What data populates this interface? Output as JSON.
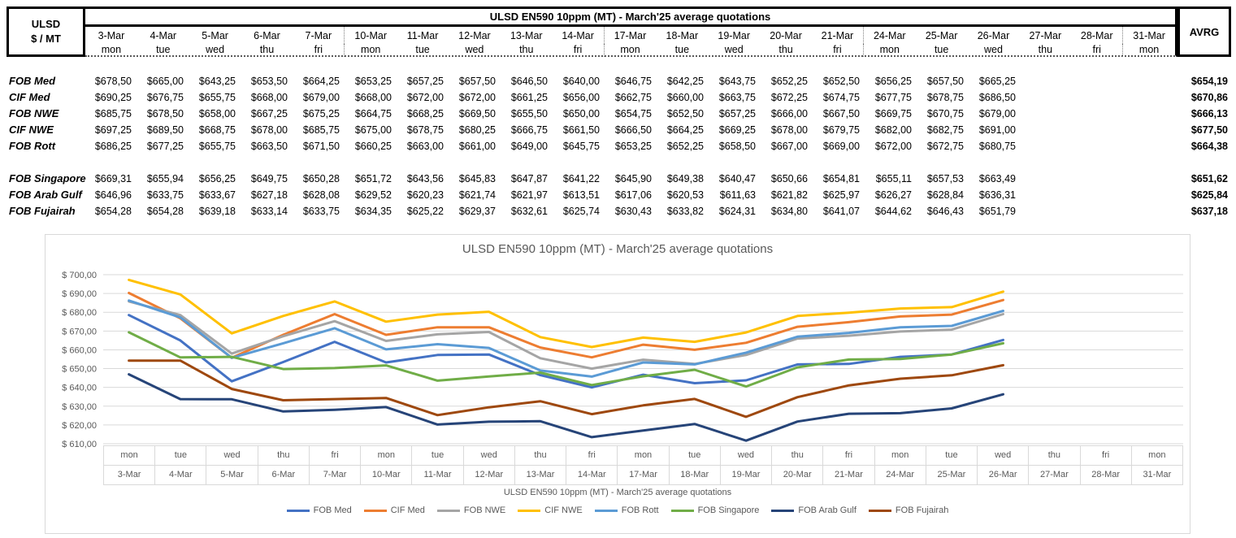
{
  "table": {
    "corner": {
      "line1": "ULSD",
      "line2": "$ / MT"
    },
    "title": "ULSD EN590 10ppm (MT) - March'25 average quotations",
    "avrg_header": "AVRG",
    "currency_prefix": "$",
    "columns": [
      {
        "date": "3-Mar",
        "day": "mon"
      },
      {
        "date": "4-Mar",
        "day": "tue"
      },
      {
        "date": "5-Mar",
        "day": "wed"
      },
      {
        "date": "6-Mar",
        "day": "thu"
      },
      {
        "date": "7-Mar",
        "day": "fri"
      },
      {
        "date": "10-Mar",
        "day": "mon"
      },
      {
        "date": "11-Mar",
        "day": "tue"
      },
      {
        "date": "12-Mar",
        "day": "wed"
      },
      {
        "date": "13-Mar",
        "day": "thu"
      },
      {
        "date": "14-Mar",
        "day": "fri"
      },
      {
        "date": "17-Mar",
        "day": "mon"
      },
      {
        "date": "18-Mar",
        "day": "tue"
      },
      {
        "date": "19-Mar",
        "day": "wed"
      },
      {
        "date": "20-Mar",
        "day": "thu"
      },
      {
        "date": "21-Mar",
        "day": "fri"
      },
      {
        "date": "24-Mar",
        "day": "mon"
      },
      {
        "date": "25-Mar",
        "day": "tue"
      },
      {
        "date": "26-Mar",
        "day": "wed"
      },
      {
        "date": "27-Mar",
        "day": "thu"
      },
      {
        "date": "28-Mar",
        "day": "fri"
      },
      {
        "date": "31-Mar",
        "day": "mon"
      }
    ],
    "week_break_after_indices": [
      4,
      9,
      14,
      19
    ],
    "row_groups": [
      [
        {
          "label": "FOB Med",
          "avrg": 654.19,
          "values": [
            678.5,
            665.0,
            643.25,
            653.5,
            664.25,
            653.25,
            657.25,
            657.5,
            646.5,
            640.0,
            646.75,
            642.25,
            643.75,
            652.25,
            652.5,
            656.25,
            657.5,
            665.25
          ]
        },
        {
          "label": "CIF Med",
          "avrg": 670.86,
          "values": [
            690.25,
            676.75,
            655.75,
            668.0,
            679.0,
            668.0,
            672.0,
            672.0,
            661.25,
            656.0,
            662.75,
            660.0,
            663.75,
            672.25,
            674.75,
            677.75,
            678.75,
            686.5
          ]
        },
        {
          "label": "FOB NWE",
          "avrg": 666.13,
          "values": [
            685.75,
            678.5,
            658.0,
            667.25,
            675.25,
            664.75,
            668.25,
            669.5,
            655.5,
            650.0,
            654.75,
            652.5,
            657.25,
            666.0,
            667.5,
            669.75,
            670.75,
            679.0
          ]
        },
        {
          "label": "CIF NWE",
          "avrg": 677.5,
          "values": [
            697.25,
            689.5,
            668.75,
            678.0,
            685.75,
            675.0,
            678.75,
            680.25,
            666.75,
            661.5,
            666.5,
            664.25,
            669.25,
            678.0,
            679.75,
            682.0,
            682.75,
            691.0
          ]
        },
        {
          "label": "FOB Rott",
          "avrg": 664.38,
          "values": [
            686.25,
            677.25,
            655.75,
            663.5,
            671.5,
            660.25,
            663.0,
            661.0,
            649.0,
            645.75,
            653.25,
            652.25,
            658.5,
            667.0,
            669.0,
            672.0,
            672.75,
            680.75
          ]
        }
      ],
      [
        {
          "label": "FOB Singapore",
          "avrg": 651.62,
          "values": [
            669.31,
            655.94,
            656.25,
            649.75,
            650.28,
            651.72,
            643.56,
            645.83,
            647.87,
            641.22,
            645.9,
            649.38,
            640.47,
            650.66,
            654.81,
            655.11,
            657.53,
            663.49
          ]
        },
        {
          "label": "FOB Arab Gulf",
          "avrg": 625.84,
          "values": [
            646.96,
            633.75,
            633.67,
            627.18,
            628.08,
            629.52,
            620.23,
            621.74,
            621.97,
            613.51,
            617.06,
            620.53,
            611.63,
            621.82,
            625.97,
            626.27,
            628.84,
            636.31
          ]
        },
        {
          "label": "FOB Fujairah",
          "avrg": 637.18,
          "values": [
            654.28,
            654.28,
            639.18,
            633.14,
            633.75,
            634.35,
            625.22,
            629.37,
            632.61,
            625.74,
            630.43,
            633.82,
            624.31,
            634.8,
            641.07,
            644.62,
            646.43,
            651.79
          ]
        }
      ]
    ]
  },
  "chart_data": {
    "type": "line",
    "title": "ULSD EN590 10ppm (MT) - March'25 average quotations",
    "x_axis_title": "ULSD EN590 10ppm (MT) - March'25 average quotations",
    "y_tick_prefix": "$ ",
    "ylim": [
      610,
      700
    ],
    "ytick_step": 10,
    "grid": true,
    "legend_position": "bottom",
    "categories": [
      {
        "date": "3-Mar",
        "day": "mon"
      },
      {
        "date": "4-Mar",
        "day": "tue"
      },
      {
        "date": "5-Mar",
        "day": "wed"
      },
      {
        "date": "6-Mar",
        "day": "thu"
      },
      {
        "date": "7-Mar",
        "day": "fri"
      },
      {
        "date": "10-Mar",
        "day": "mon"
      },
      {
        "date": "11-Mar",
        "day": "tue"
      },
      {
        "date": "12-Mar",
        "day": "wed"
      },
      {
        "date": "13-Mar",
        "day": "thu"
      },
      {
        "date": "14-Mar",
        "day": "fri"
      },
      {
        "date": "17-Mar",
        "day": "mon"
      },
      {
        "date": "18-Mar",
        "day": "tue"
      },
      {
        "date": "19-Mar",
        "day": "wed"
      },
      {
        "date": "20-Mar",
        "day": "thu"
      },
      {
        "date": "21-Mar",
        "day": "fri"
      },
      {
        "date": "24-Mar",
        "day": "mon"
      },
      {
        "date": "25-Mar",
        "day": "tue"
      },
      {
        "date": "26-Mar",
        "day": "wed"
      },
      {
        "date": "27-Mar",
        "day": "thu"
      },
      {
        "date": "28-Mar",
        "day": "fri"
      },
      {
        "date": "31-Mar",
        "day": "mon"
      }
    ],
    "series": [
      {
        "name": "FOB Med",
        "color": "#4472C4",
        "values": [
          678.5,
          665.0,
          643.25,
          653.5,
          664.25,
          653.25,
          657.25,
          657.5,
          646.5,
          640.0,
          646.75,
          642.25,
          643.75,
          652.25,
          652.5,
          656.25,
          657.5,
          665.25
        ]
      },
      {
        "name": "CIF Med",
        "color": "#ED7D31",
        "values": [
          690.25,
          676.75,
          655.75,
          668.0,
          679.0,
          668.0,
          672.0,
          672.0,
          661.25,
          656.0,
          662.75,
          660.0,
          663.75,
          672.25,
          674.75,
          677.75,
          678.75,
          686.5
        ]
      },
      {
        "name": "FOB NWE",
        "color": "#A5A5A5",
        "values": [
          685.75,
          678.5,
          658.0,
          667.25,
          675.25,
          664.75,
          668.25,
          669.5,
          655.5,
          650.0,
          654.75,
          652.5,
          657.25,
          666.0,
          667.5,
          669.75,
          670.75,
          679.0
        ]
      },
      {
        "name": "CIF NWE",
        "color": "#FFC000",
        "values": [
          697.25,
          689.5,
          668.75,
          678.0,
          685.75,
          675.0,
          678.75,
          680.25,
          666.75,
          661.5,
          666.5,
          664.25,
          669.25,
          678.0,
          679.75,
          682.0,
          682.75,
          691.0
        ]
      },
      {
        "name": "FOB Rott",
        "color": "#5B9BD5",
        "values": [
          686.25,
          677.25,
          655.75,
          663.5,
          671.5,
          660.25,
          663.0,
          661.0,
          649.0,
          645.75,
          653.25,
          652.25,
          658.5,
          667.0,
          669.0,
          672.0,
          672.75,
          680.75
        ]
      },
      {
        "name": "FOB Singapore",
        "color": "#70AD47",
        "values": [
          669.31,
          655.94,
          656.25,
          649.75,
          650.28,
          651.72,
          643.56,
          645.83,
          647.87,
          641.22,
          645.9,
          649.38,
          640.47,
          650.66,
          654.81,
          655.11,
          657.53,
          663.49
        ]
      },
      {
        "name": "FOB Arab Gulf",
        "color": "#264478",
        "values": [
          646.96,
          633.75,
          633.67,
          627.18,
          628.08,
          629.52,
          620.23,
          621.74,
          621.97,
          613.51,
          617.06,
          620.53,
          611.63,
          621.82,
          625.97,
          626.27,
          628.84,
          636.31
        ]
      },
      {
        "name": "FOB Fujairah",
        "color": "#9E480E",
        "values": [
          654.28,
          654.28,
          639.18,
          633.14,
          633.75,
          634.35,
          625.22,
          629.37,
          632.61,
          625.74,
          630.43,
          633.82,
          624.31,
          634.8,
          641.07,
          644.62,
          646.43,
          651.79
        ]
      }
    ]
  }
}
